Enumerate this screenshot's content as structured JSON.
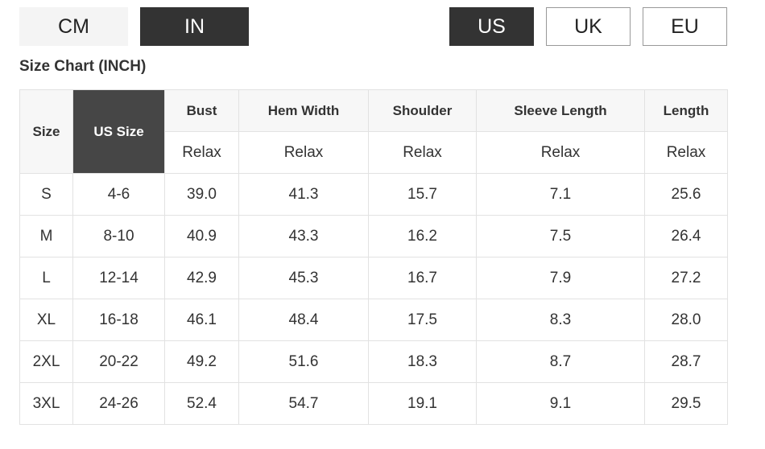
{
  "unit_toggle": {
    "cm": "CM",
    "in": "IN",
    "selected": "IN"
  },
  "region_toggle": {
    "us": "US",
    "uk": "UK",
    "eu": "EU",
    "selected": "US"
  },
  "title": "Size Chart (INCH)",
  "table": {
    "headers": [
      "Size",
      "US Size",
      "Bust",
      "Hem Width",
      "Shoulder",
      "Sleeve Length",
      "Length"
    ],
    "subheaders": [
      "Relax",
      "Relax",
      "Relax",
      "Relax",
      "Relax"
    ],
    "rows": [
      [
        "S",
        "4-6",
        "39.0",
        "41.3",
        "15.7",
        "7.1",
        "25.6"
      ],
      [
        "M",
        "8-10",
        "40.9",
        "43.3",
        "16.2",
        "7.5",
        "26.4"
      ],
      [
        "L",
        "12-14",
        "42.9",
        "45.3",
        "16.7",
        "7.9",
        "27.2"
      ],
      [
        "XL",
        "16-18",
        "46.1",
        "48.4",
        "17.5",
        "8.3",
        "28.0"
      ],
      [
        "2XL",
        "20-22",
        "49.2",
        "51.6",
        "18.3",
        "8.7",
        "28.7"
      ],
      [
        "3XL",
        "24-26",
        "52.4",
        "54.7",
        "19.1",
        "9.1",
        "29.5"
      ]
    ]
  }
}
